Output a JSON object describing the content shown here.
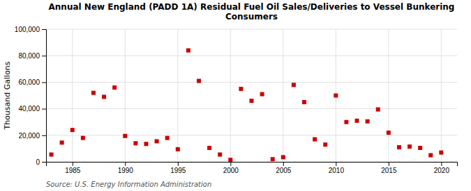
{
  "chart_data": {
    "type": "scatter",
    "title": "Annual New England (PADD 1A) Residual Fuel Oil Sales/Deliveries to Vessel Bunkering\nConsumers",
    "ylabel": "Thousand Gallons",
    "source": "Source: U.S. Energy Information Administration",
    "x": [
      1983,
      1984,
      1985,
      1986,
      1987,
      1988,
      1989,
      1990,
      1991,
      1992,
      1993,
      1994,
      1995,
      1996,
      1997,
      1998,
      1999,
      2000,
      2001,
      2002,
      2003,
      2004,
      2005,
      2006,
      2007,
      2008,
      2009,
      2010,
      2011,
      2012,
      2013,
      2014,
      2015,
      2016,
      2017,
      2018,
      2019,
      2020
    ],
    "values": [
      5500,
      14500,
      24000,
      18000,
      52000,
      49000,
      56000,
      19500,
      14000,
      13500,
      15500,
      18000,
      9500,
      84000,
      61000,
      10500,
      5500,
      1500,
      55000,
      46000,
      51000,
      2000,
      3500,
      58000,
      45000,
      17000,
      13000,
      50000,
      30000,
      31000,
      30500,
      39500,
      22000,
      11000,
      11500,
      10500,
      5000,
      7000
    ],
    "color": "#cc0000",
    "marker": "square",
    "xlim": [
      1982.5,
      2021.5
    ],
    "ylim": [
      0,
      100000
    ],
    "xticks": [
      1985,
      1990,
      1995,
      2000,
      2005,
      2010,
      2015,
      2020
    ],
    "yticks": [
      0,
      {
        "value": 20000,
        "label": "20,000"
      },
      {
        "value": 40000,
        "label": "40,000"
      },
      {
        "value": 60000,
        "label": "60,000"
      },
      {
        "value": 80000,
        "label": "80,000"
      },
      {
        "value": 100000,
        "label": "100,000"
      }
    ],
    "grid": true
  }
}
